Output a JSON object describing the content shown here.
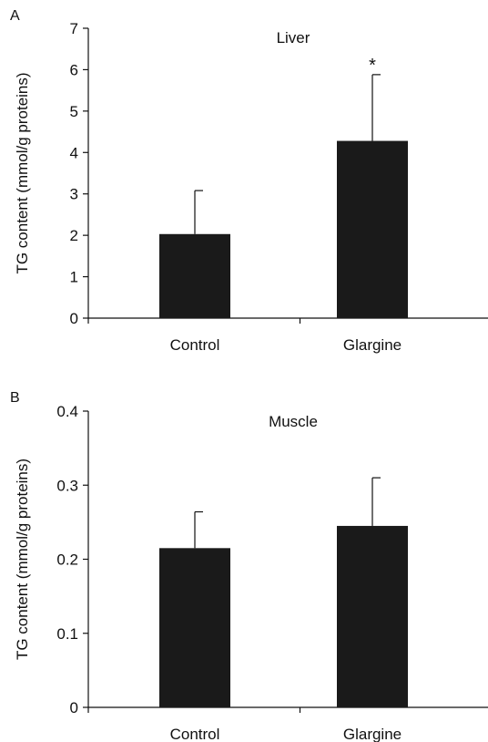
{
  "chart_data": [
    {
      "type": "bar",
      "panel_label": "A",
      "title": "Liver",
      "ylabel": "TG content (mmol/g proteins)",
      "xlabel": "",
      "categories": [
        "Control",
        "Glargine"
      ],
      "values": [
        2.03,
        4.28
      ],
      "error_upper": [
        1.05,
        1.6
      ],
      "ylim": [
        0,
        7
      ],
      "yticks": [
        "0",
        "1",
        "2",
        "3",
        "4",
        "5",
        "6",
        "7"
      ],
      "annotations": [
        "",
        "*"
      ],
      "bar_color": "#1a1a1a"
    },
    {
      "type": "bar",
      "panel_label": "B",
      "title": "Muscle",
      "ylabel": "TG content (mmol/g proteins)",
      "xlabel": "",
      "categories": [
        "Control",
        "Glargine"
      ],
      "values": [
        0.215,
        0.245
      ],
      "error_upper": [
        0.049,
        0.065
      ],
      "ylim": [
        0,
        0.4
      ],
      "yticks": [
        "0",
        "0.1",
        "0.2",
        "0.3",
        "0.4"
      ],
      "annotations": [
        "",
        ""
      ],
      "bar_color": "#1a1a1a"
    }
  ]
}
